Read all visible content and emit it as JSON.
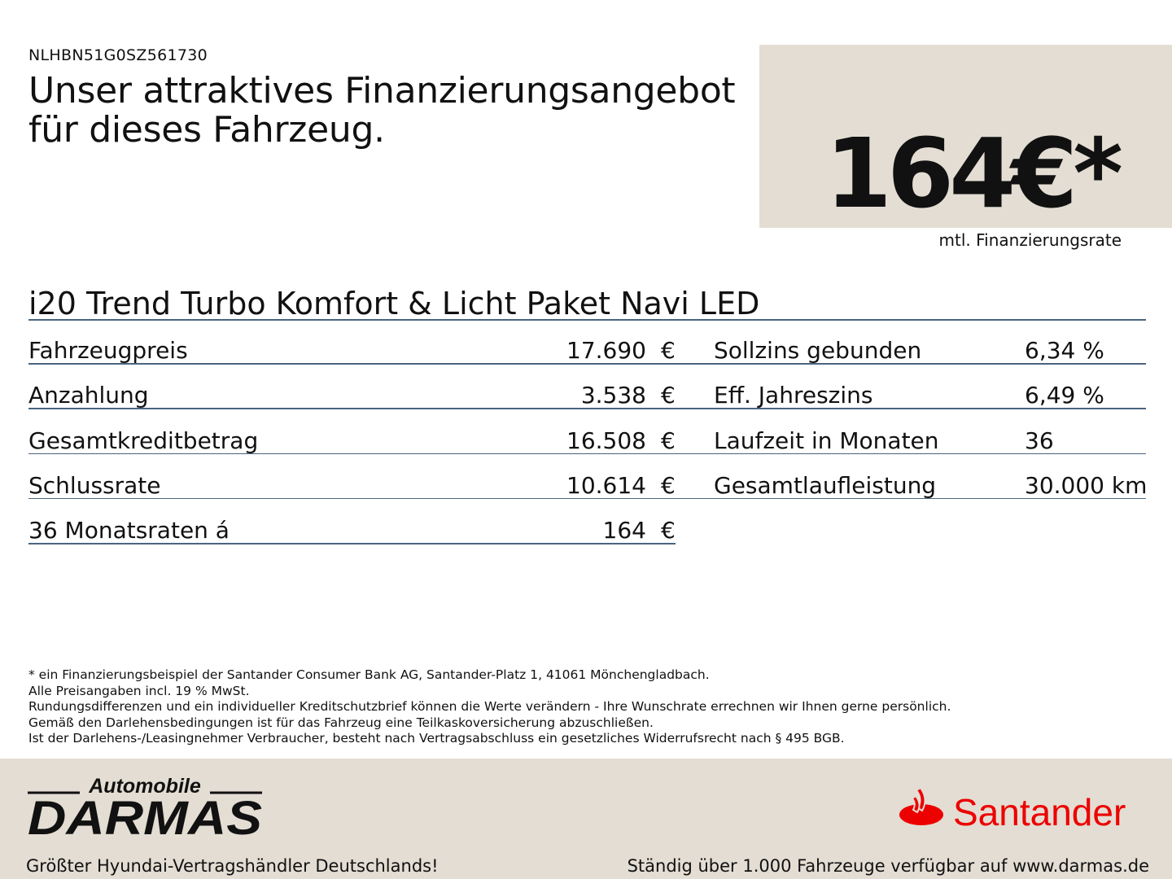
{
  "vin": "NLHBN51G0SZ561730",
  "headline": [
    "Unser attraktives Finanzierungsangebot",
    "für dieses Fahrzeug."
  ],
  "price_box": {
    "amount": "164€*",
    "label": "mtl. Finanzierungsrate"
  },
  "model": "i20 Trend Turbo Komfort & Licht Paket Navi LED",
  "left_rows": [
    {
      "label": "Fahrzeugpreis",
      "value": "17.690",
      "unit": "€"
    },
    {
      "label": "Anzahlung",
      "value": "3.538",
      "unit": "€"
    },
    {
      "label": "Gesamtkreditbetrag",
      "value": "16.508",
      "unit": "€"
    },
    {
      "label": "Schlussrate",
      "value": "10.614",
      "unit": "€"
    },
    {
      "label": "36 Monatsraten á",
      "value": "164",
      "unit": "€"
    }
  ],
  "right_rows": [
    {
      "label": "Sollzins gebunden",
      "value": "6,34 %"
    },
    {
      "label": "Eff. Jahreszins",
      "value": "6,49 %"
    },
    {
      "label": "Laufzeit in Monaten",
      "value": "36"
    },
    {
      "label": "Gesamtlaufleistung",
      "value": "30.000 km"
    }
  ],
  "footnotes": [
    "* ein Finanzierungsbeispiel der Santander Consumer Bank AG, Santander-Platz 1, 41061 Mönchengladbach.",
    "Alle Preisangaben incl. 19 % MwSt.",
    "Rundungsdifferenzen und ein individueller Kreditschutzbrief können die Werte verändern - Ihre Wunschrate errechnen wir Ihnen gerne persönlich.",
    "Gemäß den Darlehensbedingungen ist für das Fahrzeug eine Teilkaskoversicherung abzuschließen.",
    "Ist der Darlehens-/Leasingnehmer Verbraucher, besteht nach Vertragsabschluss ein gesetzliches Widerrufsrecht nach § 495 BGB."
  ],
  "footer": {
    "dealer_logo": {
      "top": "Automobile",
      "main": "DARMAS"
    },
    "bank_logo": "Santander",
    "dealer_tagline": "Größter Hyundai-Vertragshändler Deutschlands!",
    "stock_tagline": "Ständig über 1.000 Fahrzeuge verfügbar auf www.darmas.de"
  },
  "colors": {
    "beige": "#e4ddd3",
    "rule": "#4a6580",
    "santander_red": "#ec0000"
  }
}
